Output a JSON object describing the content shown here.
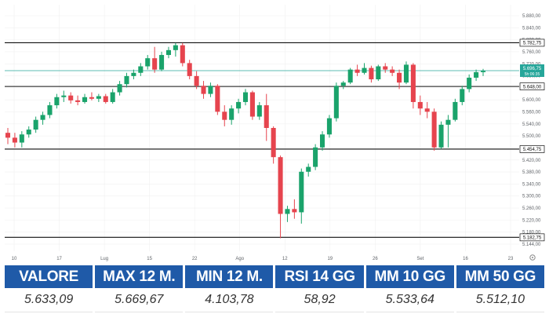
{
  "theme": {
    "accent": "#1f5aa8",
    "up_color": "#1aa36b",
    "down_color": "#e6444e",
    "level_line_color": "#111111",
    "last_line_color": "#26a69a",
    "grid_color": "#f0f0f0"
  },
  "chart_data": {
    "type": "candlestick",
    "x_ticks": [
      "10",
      "17",
      "Lug",
      "15",
      "22",
      "Ago",
      "12",
      "19",
      "26",
      "Set",
      "16",
      "23"
    ],
    "y_ticks": [
      "5.880,00",
      "5.840,00",
      "5.800,00",
      "5.760,00",
      "5.720,00",
      "5.680,00",
      "5.640,00",
      "5.600,00",
      "5.560,00",
      "5.540,00",
      "5.500,00",
      "5.460,00",
      "5.420,00",
      "5.380,00",
      "5.340,00",
      "5.300,00",
      "5.260,00",
      "5.220,00",
      "5.180,00",
      "5.144,00"
    ],
    "ylim": [
      5140,
      5900
    ],
    "levels": [
      {
        "value": 5782.75,
        "label": "5.782,75"
      },
      {
        "value": 5648.0,
        "label": "5.648,00"
      },
      {
        "value": 5454.75,
        "label": "5.454,75"
      },
      {
        "value": 5182.75,
        "label": "5.182,75"
      }
    ],
    "last_price": {
      "value": 5696.75,
      "label": "5.696,75",
      "sub_label": "5h:06:35"
    },
    "candles": [
      {
        "o": 5505,
        "h": 5520,
        "l": 5470,
        "c": 5490
      },
      {
        "o": 5490,
        "h": 5505,
        "l": 5460,
        "c": 5475
      },
      {
        "o": 5475,
        "h": 5510,
        "l": 5460,
        "c": 5500
      },
      {
        "o": 5500,
        "h": 5525,
        "l": 5490,
        "c": 5515
      },
      {
        "o": 5515,
        "h": 5555,
        "l": 5505,
        "c": 5545
      },
      {
        "o": 5545,
        "h": 5570,
        "l": 5530,
        "c": 5560
      },
      {
        "o": 5560,
        "h": 5600,
        "l": 5550,
        "c": 5590
      },
      {
        "o": 5590,
        "h": 5625,
        "l": 5580,
        "c": 5615
      },
      {
        "o": 5615,
        "h": 5635,
        "l": 5600,
        "c": 5620
      },
      {
        "o": 5620,
        "h": 5630,
        "l": 5595,
        "c": 5605
      },
      {
        "o": 5605,
        "h": 5620,
        "l": 5590,
        "c": 5600
      },
      {
        "o": 5600,
        "h": 5625,
        "l": 5595,
        "c": 5615
      },
      {
        "o": 5615,
        "h": 5630,
        "l": 5605,
        "c": 5610
      },
      {
        "o": 5610,
        "h": 5625,
        "l": 5600,
        "c": 5618
      },
      {
        "o": 5618,
        "h": 5625,
        "l": 5595,
        "c": 5600
      },
      {
        "o": 5600,
        "h": 5640,
        "l": 5595,
        "c": 5630
      },
      {
        "o": 5630,
        "h": 5665,
        "l": 5620,
        "c": 5655
      },
      {
        "o": 5655,
        "h": 5690,
        "l": 5645,
        "c": 5680
      },
      {
        "o": 5680,
        "h": 5700,
        "l": 5670,
        "c": 5690
      },
      {
        "o": 5690,
        "h": 5720,
        "l": 5680,
        "c": 5710
      },
      {
        "o": 5710,
        "h": 5745,
        "l": 5700,
        "c": 5735
      },
      {
        "o": 5735,
        "h": 5770,
        "l": 5690,
        "c": 5700
      },
      {
        "o": 5700,
        "h": 5755,
        "l": 5695,
        "c": 5745
      },
      {
        "o": 5745,
        "h": 5770,
        "l": 5735,
        "c": 5760
      },
      {
        "o": 5760,
        "h": 5782,
        "l": 5740,
        "c": 5775
      },
      {
        "o": 5775,
        "h": 5782,
        "l": 5710,
        "c": 5720
      },
      {
        "o": 5720,
        "h": 5730,
        "l": 5670,
        "c": 5680
      },
      {
        "o": 5680,
        "h": 5695,
        "l": 5640,
        "c": 5650
      },
      {
        "o": 5650,
        "h": 5665,
        "l": 5610,
        "c": 5625
      },
      {
        "o": 5625,
        "h": 5660,
        "l": 5615,
        "c": 5650
      },
      {
        "o": 5650,
        "h": 5655,
        "l": 5560,
        "c": 5570
      },
      {
        "o": 5570,
        "h": 5590,
        "l": 5525,
        "c": 5545
      },
      {
        "o": 5545,
        "h": 5590,
        "l": 5530,
        "c": 5580
      },
      {
        "o": 5580,
        "h": 5610,
        "l": 5565,
        "c": 5600
      },
      {
        "o": 5600,
        "h": 5640,
        "l": 5590,
        "c": 5630
      },
      {
        "o": 5630,
        "h": 5635,
        "l": 5545,
        "c": 5555
      },
      {
        "o": 5555,
        "h": 5600,
        "l": 5545,
        "c": 5590
      },
      {
        "o": 5590,
        "h": 5625,
        "l": 5480,
        "c": 5520
      },
      {
        "o": 5520,
        "h": 5525,
        "l": 5410,
        "c": 5430
      },
      {
        "o": 5430,
        "h": 5435,
        "l": 5180,
        "c": 5255
      },
      {
        "o": 5255,
        "h": 5280,
        "l": 5230,
        "c": 5270
      },
      {
        "o": 5270,
        "h": 5300,
        "l": 5240,
        "c": 5260
      },
      {
        "o": 5260,
        "h": 5395,
        "l": 5225,
        "c": 5385
      },
      {
        "o": 5385,
        "h": 5410,
        "l": 5370,
        "c": 5400
      },
      {
        "o": 5400,
        "h": 5470,
        "l": 5390,
        "c": 5460
      },
      {
        "o": 5460,
        "h": 5510,
        "l": 5450,
        "c": 5500
      },
      {
        "o": 5500,
        "h": 5560,
        "l": 5490,
        "c": 5550
      },
      {
        "o": 5550,
        "h": 5660,
        "l": 5540,
        "c": 5650
      },
      {
        "o": 5650,
        "h": 5665,
        "l": 5640,
        "c": 5660
      },
      {
        "o": 5660,
        "h": 5705,
        "l": 5655,
        "c": 5700
      },
      {
        "o": 5700,
        "h": 5715,
        "l": 5680,
        "c": 5690
      },
      {
        "o": 5690,
        "h": 5720,
        "l": 5685,
        "c": 5705
      },
      {
        "o": 5705,
        "h": 5712,
        "l": 5660,
        "c": 5670
      },
      {
        "o": 5670,
        "h": 5715,
        "l": 5665,
        "c": 5710
      },
      {
        "o": 5710,
        "h": 5720,
        "l": 5690,
        "c": 5700
      },
      {
        "o": 5700,
        "h": 5710,
        "l": 5680,
        "c": 5690
      },
      {
        "o": 5690,
        "h": 5700,
        "l": 5640,
        "c": 5660
      },
      {
        "o": 5660,
        "h": 5725,
        "l": 5655,
        "c": 5715
      },
      {
        "o": 5715,
        "h": 5720,
        "l": 5580,
        "c": 5600
      },
      {
        "o": 5600,
        "h": 5620,
        "l": 5560,
        "c": 5580
      },
      {
        "o": 5580,
        "h": 5600,
        "l": 5550,
        "c": 5570
      },
      {
        "o": 5570,
        "h": 5580,
        "l": 5450,
        "c": 5460
      },
      {
        "o": 5460,
        "h": 5540,
        "l": 5455,
        "c": 5530
      },
      {
        "o": 5530,
        "h": 5560,
        "l": 5460,
        "c": 5545
      },
      {
        "o": 5545,
        "h": 5610,
        "l": 5540,
        "c": 5600
      },
      {
        "o": 5600,
        "h": 5650,
        "l": 5590,
        "c": 5640
      },
      {
        "o": 5640,
        "h": 5685,
        "l": 5630,
        "c": 5675
      },
      {
        "o": 5675,
        "h": 5700,
        "l": 5665,
        "c": 5692
      },
      {
        "o": 5692,
        "h": 5702,
        "l": 5680,
        "c": 5696
      }
    ]
  },
  "stats": [
    {
      "label": "VALORE",
      "value": "5.633,09"
    },
    {
      "label": "MAX 12 M.",
      "value": "5.669,67"
    },
    {
      "label": "MIN 12 M.",
      "value": "4.103,78"
    },
    {
      "label": "RSI 14 GG",
      "value": "58,92"
    },
    {
      "label": "MM 10 GG",
      "value": "5.533,64"
    },
    {
      "label": "MM 50 GG",
      "value": "5.512,10"
    }
  ],
  "icons": {
    "settings": "gear-icon"
  }
}
